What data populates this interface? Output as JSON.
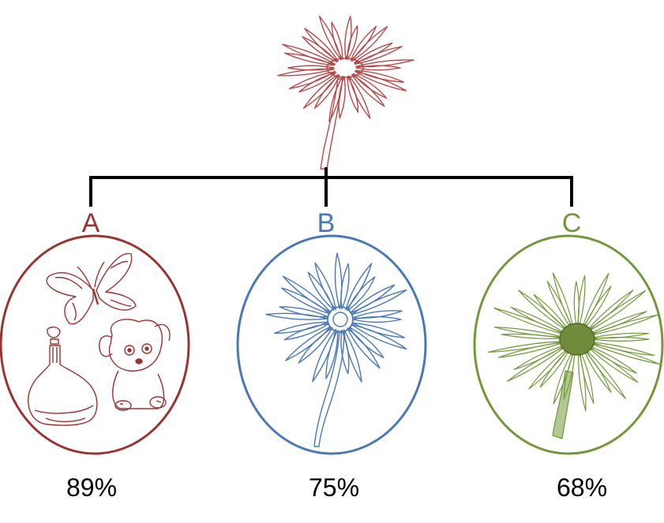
{
  "options": [
    {
      "letter": "A",
      "percent": "89%",
      "color": "#9b3232",
      "icons": [
        "butterfly-icon",
        "bottle-icon",
        "puppy-icon"
      ]
    },
    {
      "letter": "B",
      "percent": "75%",
      "color": "#4a78b4",
      "icons": [
        "daisy-outline-icon"
      ]
    },
    {
      "letter": "C",
      "percent": "68%",
      "color": "#72983a",
      "icons": [
        "daisy-sketch-icon"
      ]
    }
  ],
  "target": {
    "icon": "daisy-icon",
    "color": "#b54a4a"
  },
  "connector_color": "#000000"
}
